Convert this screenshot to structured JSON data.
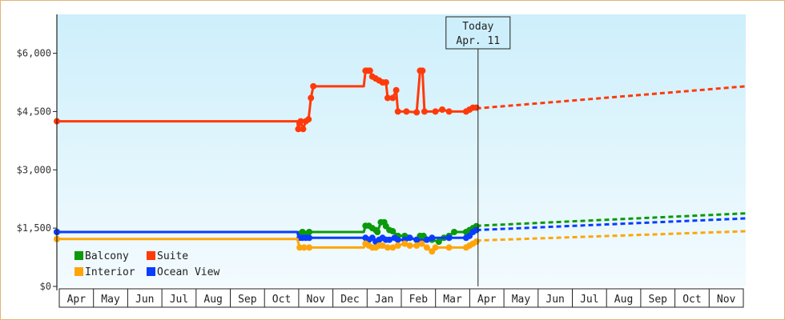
{
  "chart_data": {
    "type": "line",
    "title": "",
    "xlabel": "",
    "ylabel": "",
    "y_ticks": [
      {
        "value": 0,
        "label": "$0"
      },
      {
        "value": 1500,
        "label": "$1,500"
      },
      {
        "value": 3000,
        "label": "$3,000"
      },
      {
        "value": 4500,
        "label": "$4,500"
      },
      {
        "value": 6000,
        "label": "$6,000"
      }
    ],
    "ylim": [
      0,
      7000
    ],
    "xlim": [
      0,
      20.2
    ],
    "months": [
      "Apr",
      "May",
      "Jun",
      "Jul",
      "Aug",
      "Sep",
      "Oct",
      "Nov",
      "Dec",
      "Jan",
      "Feb",
      "Mar",
      "Apr",
      "May",
      "Jun",
      "Jul",
      "Aug",
      "Sep",
      "Oct",
      "Nov"
    ],
    "today": {
      "line1": "Today",
      "line2": "Apr. 11",
      "x": 12.35
    },
    "grid": false,
    "legend_position": "bottom-left",
    "background": {
      "top": "#cdeffb",
      "bottom": "#f3fbfe"
    },
    "series": [
      {
        "name": "Suite",
        "color": "#ff3a0a",
        "points": [
          [
            0,
            4250
          ],
          [
            7.05,
            4250
          ],
          [
            7.08,
            4050
          ],
          [
            7.15,
            4250
          ],
          [
            7.22,
            4050
          ],
          [
            7.3,
            4250
          ],
          [
            7.38,
            4300
          ],
          [
            7.45,
            4850
          ],
          [
            7.52,
            5150
          ],
          [
            9.0,
            5150
          ],
          [
            9.05,
            5550
          ],
          [
            9.12,
            5550
          ],
          [
            9.18,
            5550
          ],
          [
            9.25,
            5400
          ],
          [
            9.35,
            5350
          ],
          [
            9.45,
            5300
          ],
          [
            9.55,
            5250
          ],
          [
            9.65,
            5250
          ],
          [
            9.7,
            4850
          ],
          [
            9.85,
            4850
          ],
          [
            9.95,
            5050
          ],
          [
            10.0,
            4500
          ],
          [
            10.25,
            4500
          ],
          [
            10.55,
            4480
          ],
          [
            10.65,
            5550
          ],
          [
            10.72,
            5550
          ],
          [
            10.78,
            4500
          ],
          [
            11.1,
            4500
          ],
          [
            11.3,
            4550
          ],
          [
            11.5,
            4500
          ],
          [
            12.0,
            4500
          ],
          [
            12.1,
            4550
          ],
          [
            12.2,
            4600
          ],
          [
            12.3,
            4600
          ]
        ],
        "forecast": [
          [
            12.3,
            4580
          ],
          [
            20.2,
            5150
          ]
        ]
      },
      {
        "name": "Balcony",
        "color": "#0a9a0a",
        "points": [
          [
            0,
            1400
          ],
          [
            7.05,
            1400
          ],
          [
            7.12,
            1350
          ],
          [
            7.2,
            1400
          ],
          [
            7.3,
            1350
          ],
          [
            7.4,
            1400
          ],
          [
            9.0,
            1400
          ],
          [
            9.05,
            1560
          ],
          [
            9.15,
            1560
          ],
          [
            9.25,
            1500
          ],
          [
            9.35,
            1450
          ],
          [
            9.4,
            1400
          ],
          [
            9.5,
            1650
          ],
          [
            9.6,
            1650
          ],
          [
            9.65,
            1550
          ],
          [
            9.75,
            1450
          ],
          [
            9.85,
            1420
          ],
          [
            10.0,
            1300
          ],
          [
            10.2,
            1300
          ],
          [
            10.3,
            1250
          ],
          [
            10.55,
            1200
          ],
          [
            10.65,
            1300
          ],
          [
            10.75,
            1300
          ],
          [
            11.0,
            1200
          ],
          [
            11.2,
            1150
          ],
          [
            11.35,
            1250
          ],
          [
            11.5,
            1300
          ],
          [
            11.65,
            1400
          ],
          [
            12.0,
            1400
          ],
          [
            12.1,
            1450
          ],
          [
            12.2,
            1500
          ],
          [
            12.3,
            1550
          ]
        ],
        "forecast": [
          [
            12.3,
            1560
          ],
          [
            20.2,
            1880
          ]
        ]
      },
      {
        "name": "Ocean View",
        "color": "#0a3cff",
        "points": [
          [
            0,
            1400
          ],
          [
            7.05,
            1400
          ],
          [
            7.12,
            1250
          ],
          [
            7.2,
            1250
          ],
          [
            7.3,
            1250
          ],
          [
            7.4,
            1250
          ],
          [
            9.0,
            1250
          ],
          [
            9.05,
            1250
          ],
          [
            9.15,
            1200
          ],
          [
            9.25,
            1250
          ],
          [
            9.35,
            1150
          ],
          [
            9.45,
            1200
          ],
          [
            9.55,
            1250
          ],
          [
            9.65,
            1200
          ],
          [
            9.75,
            1200
          ],
          [
            9.9,
            1250
          ],
          [
            10.0,
            1200
          ],
          [
            10.2,
            1200
          ],
          [
            10.35,
            1250
          ],
          [
            10.55,
            1200
          ],
          [
            10.7,
            1150
          ],
          [
            10.85,
            1200
          ],
          [
            11.0,
            1250
          ],
          [
            11.5,
            1250
          ],
          [
            12.0,
            1250
          ],
          [
            12.1,
            1300
          ],
          [
            12.2,
            1400
          ],
          [
            12.3,
            1450
          ]
        ],
        "forecast": [
          [
            12.3,
            1450
          ],
          [
            20.2,
            1750
          ]
        ]
      },
      {
        "name": "Interior",
        "color": "#ffa50a",
        "points": [
          [
            0,
            1220
          ],
          [
            7.05,
            1220
          ],
          [
            7.12,
            1000
          ],
          [
            7.25,
            1000
          ],
          [
            7.4,
            1000
          ],
          [
            9.0,
            1000
          ],
          [
            9.05,
            1100
          ],
          [
            9.15,
            1050
          ],
          [
            9.25,
            1000
          ],
          [
            9.35,
            1000
          ],
          [
            9.45,
            1050
          ],
          [
            9.55,
            1050
          ],
          [
            9.7,
            1000
          ],
          [
            9.85,
            1000
          ],
          [
            10.0,
            1050
          ],
          [
            10.2,
            1100
          ],
          [
            10.35,
            1050
          ],
          [
            10.55,
            1050
          ],
          [
            10.7,
            1100
          ],
          [
            10.85,
            1000
          ],
          [
            11.0,
            900
          ],
          [
            11.1,
            1000
          ],
          [
            11.5,
            1000
          ],
          [
            12.0,
            1000
          ],
          [
            12.1,
            1050
          ],
          [
            12.2,
            1100
          ],
          [
            12.3,
            1150
          ]
        ],
        "forecast": [
          [
            12.3,
            1180
          ],
          [
            20.2,
            1420
          ]
        ]
      }
    ],
    "legend": [
      {
        "name": "Balcony",
        "color": "#0a9a0a"
      },
      {
        "name": "Suite",
        "color": "#ff3a0a"
      },
      {
        "name": "Interior",
        "color": "#ffa50a"
      },
      {
        "name": "Ocean View",
        "color": "#0a3cff"
      }
    ]
  }
}
